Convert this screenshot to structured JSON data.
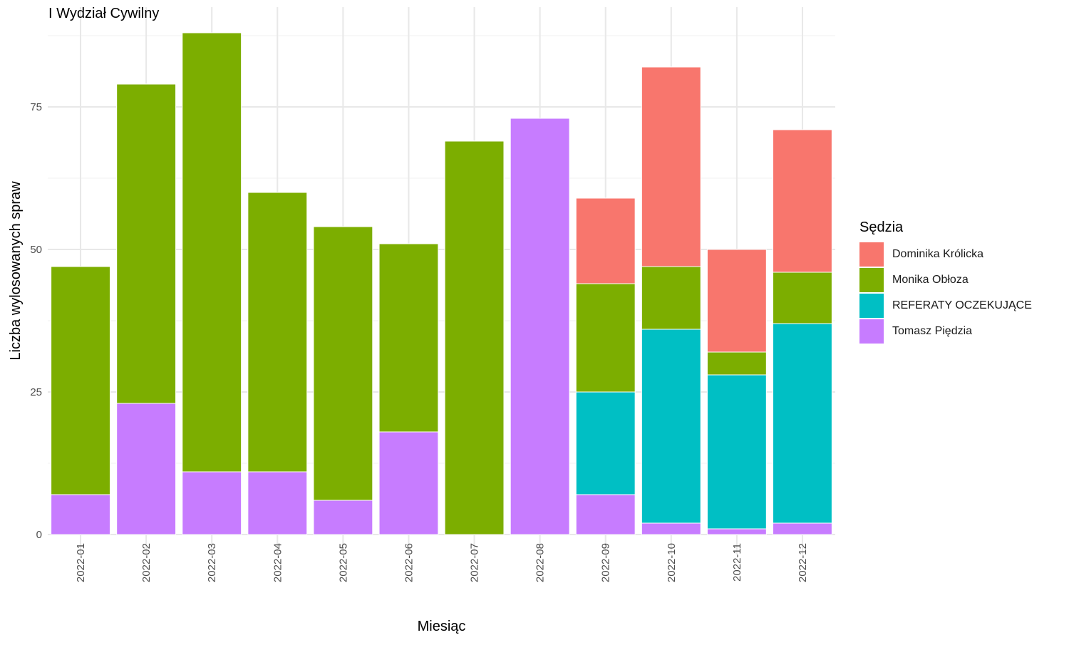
{
  "chart_data": {
    "type": "bar",
    "stacked": true,
    "title": "I Wydział Cywilny",
    "xlabel": "Miesiąc",
    "ylabel": "Liczba wylosowanych spraw",
    "ylim": [
      0,
      90
    ],
    "yticks": [
      0,
      25,
      50,
      75
    ],
    "grid": true,
    "legend_title": "Sędzia",
    "legend_position": "right",
    "categories": [
      "2022-01",
      "2022-02",
      "2022-03",
      "2022-04",
      "2022-05",
      "2022-06",
      "2022-07",
      "2022-08",
      "2022-09",
      "2022-10",
      "2022-11",
      "2022-12"
    ],
    "series": [
      {
        "name": "Dominika Królicka",
        "color": "#F8766D",
        "values": [
          0,
          0,
          0,
          0,
          0,
          0,
          0,
          0,
          15,
          35,
          18,
          25
        ]
      },
      {
        "name": "Monika Obłoza",
        "color": "#7CAE00",
        "values": [
          40,
          56,
          77,
          49,
          48,
          33,
          69,
          0,
          19,
          11,
          4,
          9
        ]
      },
      {
        "name": "REFERATY OCZEKUJĄCE",
        "color": "#00BFC4",
        "values": [
          0,
          0,
          0,
          0,
          0,
          0,
          0,
          0,
          18,
          34,
          27,
          35
        ]
      },
      {
        "name": "Tomasz Piędzia",
        "color": "#C77CFF",
        "values": [
          7,
          23,
          11,
          11,
          6,
          18,
          0,
          73,
          7,
          2,
          1,
          2
        ]
      }
    ]
  }
}
